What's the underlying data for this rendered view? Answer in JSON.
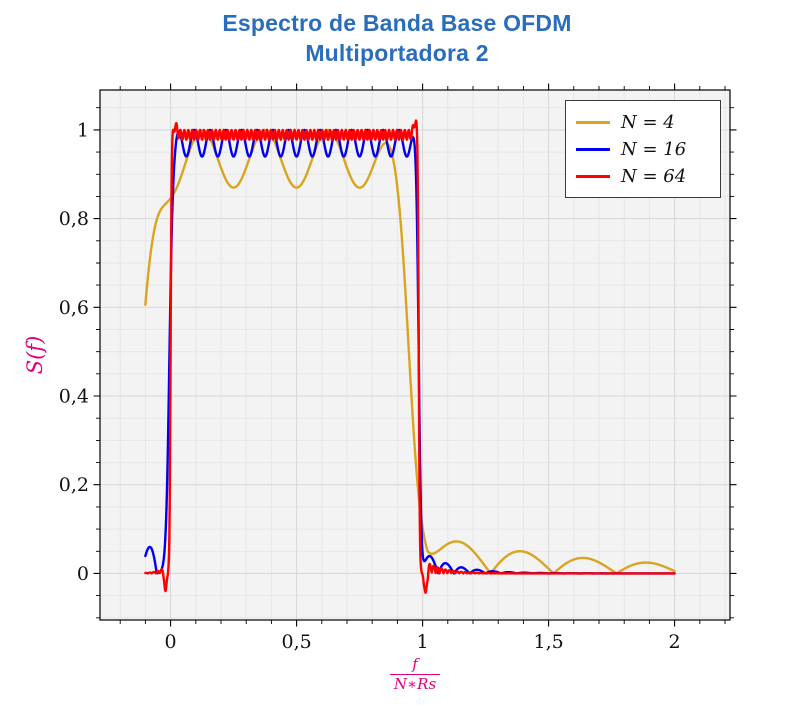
{
  "chart": {
    "title_line1": "Espectro de Banda Base OFDM",
    "title_line2": "Multiportadora 2"
  },
  "chart_data": {
    "type": "line",
    "title": "Espectro de Banda Base OFDM - Multiportadora 2",
    "xlabel": "f/(N∗Rs)",
    "xlabel_numerator": "f",
    "xlabel_denominator": "N∗Rs",
    "ylabel": "S(f)",
    "xlim": [
      -0.28,
      2.22
    ],
    "ylim": [
      -0.105,
      1.09
    ],
    "x_data_range": [
      -0.1,
      2.0
    ],
    "samples": 1500,
    "grid": "both",
    "x_minor_step": 0.1,
    "y_minor_step": 0.05,
    "legend_position": "top-right",
    "style": {
      "title_color": "#2A6EBB",
      "axis_label_color": "#E0007F",
      "plot_bg": "#f3f3f3",
      "grid_major_color": "#d7d7d7",
      "grid_minor_color": "#e6e6e6",
      "frame_color": "#000000",
      "tick_color": "#000000",
      "tick_label_color": "#111111"
    },
    "x_ticks": [
      {
        "v": 0,
        "label": "0"
      },
      {
        "v": 0.5,
        "label": "0,5"
      },
      {
        "v": 1,
        "label": "1"
      },
      {
        "v": 1.5,
        "label": "1,5"
      },
      {
        "v": 2,
        "label": "2"
      }
    ],
    "y_ticks": [
      {
        "v": 0,
        "label": "0"
      },
      {
        "v": 0.2,
        "label": "0,2"
      },
      {
        "v": 0.4,
        "label": "0,4"
      },
      {
        "v": 0.6,
        "label": "0,6"
      },
      {
        "v": 0.8,
        "label": "0,8"
      },
      {
        "v": 1,
        "label": "1"
      }
    ],
    "model": "OFDM baseband spectrum: flat passband near 1 over 0 <= f/(N*Rs) <= 1 with N in-band ripple periods of depth d, tanh-shaped band edges of width ~1/N, decaying out-of-band sidelobes, and small Gibbs overshoot/undershoot spikes at the band edges; y = ((1-d)+d*sin^2(pi*N*x))*rise*fall + sidelobes + spikes",
    "series": [
      {
        "name": "N = 4",
        "color": "#D9A521",
        "params": {
          "N": 4,
          "d": 0.13,
          "xL": -0.115,
          "wL": 0.065,
          "xR": 0.95,
          "wR": 0.05,
          "sr": {
            "x0": 1.02,
            "A": 0.085,
            "tau": 0.7
          }
        },
        "key_points": [
          [
            -0.1,
            0.64
          ],
          [
            0.125,
            1.0
          ],
          [
            0.25,
            0.9
          ],
          [
            0.5,
            0.87
          ],
          [
            0.875,
            1.0
          ],
          [
            0.95,
            0.5
          ],
          [
            1.0,
            0.1
          ],
          [
            1.12,
            0.07
          ],
          [
            1.4,
            0.05
          ],
          [
            1.62,
            0.04
          ],
          [
            1.88,
            0.03
          ],
          [
            2.0,
            0.0
          ]
        ]
      },
      {
        "name": "N = 16",
        "color": "#0000EE",
        "params": {
          "N": 16,
          "d": 0.06,
          "xL": -0.005,
          "wL": 0.013,
          "xR": 0.985,
          "wR": 0.01,
          "sr": {
            "x0": 1.0,
            "A": 0.05,
            "tau": 0.12
          },
          "sl": {
            "x0": -0.055,
            "A": 0.08,
            "tau": 0.1
          }
        },
        "key_points": [
          [
            -0.09,
            0.07
          ],
          [
            -0.05,
            0.02
          ],
          [
            0.0,
            0.5
          ],
          [
            0.03,
            1.0
          ],
          [
            0.25,
            0.95
          ],
          [
            0.5,
            0.97
          ],
          [
            0.75,
            0.95
          ],
          [
            0.97,
            1.0
          ],
          [
            1.0,
            0.2
          ],
          [
            1.06,
            0.04
          ],
          [
            1.2,
            0.01
          ],
          [
            2.0,
            0.0
          ]
        ]
      },
      {
        "name": "N = 64",
        "color": "#FF0000",
        "params": {
          "N": 64,
          "d": 0.022,
          "xL": 0.0,
          "wL": 0.004,
          "xR": 0.985,
          "wR": 0.004,
          "sr": {
            "x0": 1.005,
            "A": 0.03,
            "tau": 0.07
          },
          "sl": {
            "x0": -0.012,
            "A": 0.02,
            "tau": 0.03
          },
          "spikes": [
            {
              "a": 0.032,
              "c": 0.972,
              "w": 0.01
            },
            {
              "a": -0.07,
              "c": 1.012,
              "w": 0.007
            },
            {
              "a": -0.055,
              "c": -0.02,
              "w": 0.006
            },
            {
              "a": 0.02,
              "c": 0.018,
              "w": 0.01
            }
          ]
        },
        "key_points": [
          [
            -0.05,
            0.01
          ],
          [
            -0.02,
            -0.04
          ],
          [
            0.0,
            0.5
          ],
          [
            0.02,
            1.0
          ],
          [
            0.5,
            0.99
          ],
          [
            0.97,
            1.02
          ],
          [
            0.985,
            0.5
          ],
          [
            1.012,
            -0.04
          ],
          [
            1.1,
            0.01
          ],
          [
            1.3,
            0.0
          ],
          [
            2.0,
            0.0
          ]
        ]
      }
    ]
  }
}
